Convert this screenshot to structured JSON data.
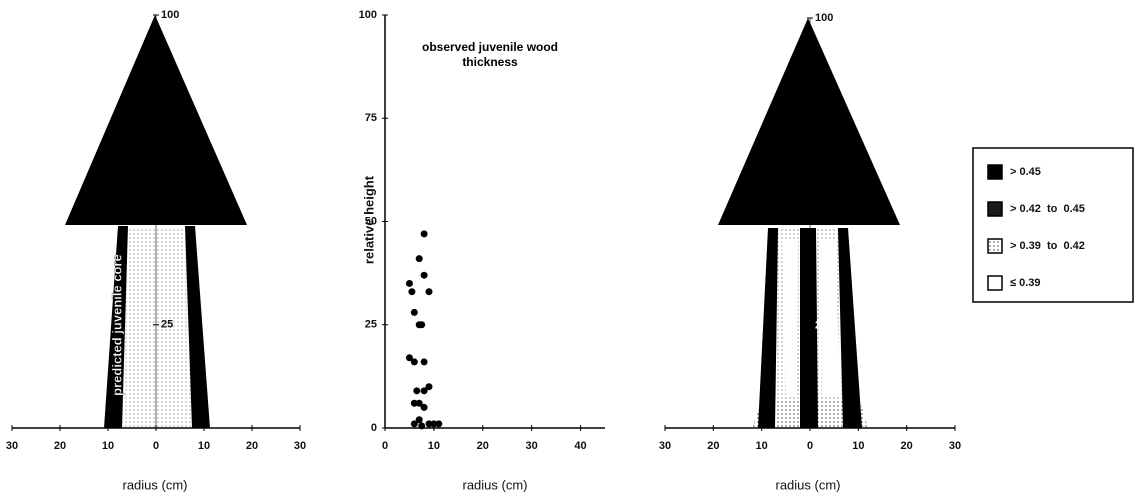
{
  "chart_data": [
    {
      "type": "tree",
      "xlabel": "radius (cm)",
      "annotation": "predicted juvenile core",
      "xlim": [
        -30,
        30
      ],
      "xticks": [
        {
          "value": -30,
          "label": "30"
        },
        {
          "value": -20,
          "label": "20"
        },
        {
          "value": -10,
          "label": "10"
        },
        0,
        10,
        20,
        30
      ],
      "ylim": [
        0,
        100
      ],
      "yticks": [
        25,
        100
      ]
    },
    {
      "type": "scatter",
      "title": "observed juvenile wood thickness",
      "xlabel": "radius (cm)",
      "ylabel": "relative height",
      "color": "#000000",
      "x": [
        5,
        5.5,
        7,
        8,
        9,
        8,
        6,
        7,
        7.5,
        5,
        6,
        8,
        6.5,
        8,
        9,
        6,
        7,
        8,
        7,
        9,
        10,
        11,
        6,
        7.5
      ],
      "values": [
        35,
        33,
        41,
        47,
        33,
        37,
        28,
        25,
        25,
        17,
        16,
        16,
        9,
        9,
        10,
        6,
        6,
        5,
        2,
        1,
        1,
        1,
        1,
        0.5
      ],
      "xlim": [
        0,
        45
      ],
      "xticks": [
        0,
        10,
        20,
        30,
        40
      ],
      "ylim": [
        0,
        100
      ],
      "yticks": [
        0,
        25,
        50,
        75,
        100
      ]
    },
    {
      "type": "tree-density",
      "xlabel": "radius (cm)",
      "xlim": [
        -30,
        30
      ],
      "xticks": [
        {
          "value": -30,
          "label": "30"
        },
        {
          "value": -20,
          "label": "20"
        },
        {
          "value": -10,
          "label": "10"
        },
        0,
        10,
        20,
        30
      ],
      "ylim": [
        0,
        100
      ],
      "yticks": [
        25,
        100
      ],
      "legend": [
        {
          "name": "> 0.45",
          "color": "#000000"
        },
        {
          "name": "> 0.42  to  0.45",
          "color": "#1a1a1a"
        },
        {
          "name": "> 0.39  to  0.42",
          "color": "#a8a8a8"
        },
        {
          "name": "≤ 0.39",
          "color": "#ffffff"
        }
      ]
    }
  ]
}
